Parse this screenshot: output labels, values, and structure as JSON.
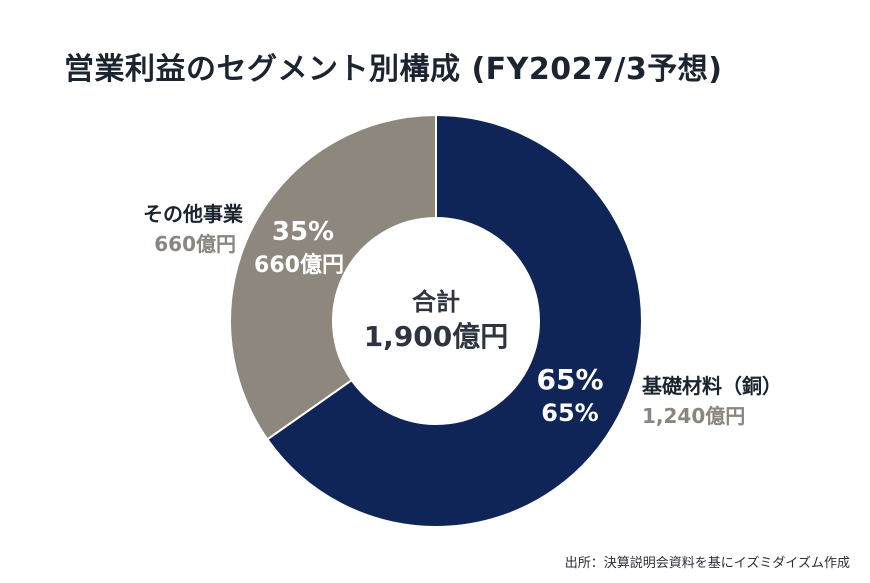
{
  "title": "営業利益のセグメント別構成 (FY2027/3予想)",
  "source": "出所：決算説明会資料を基にイズミダイズム作成",
  "colors": {
    "background": "#ffffff",
    "title": "#1c2430",
    "center_text": "#2f3540",
    "muted_label": "#8a857e"
  },
  "chart_data": {
    "type": "pie",
    "donut": true,
    "center_label": {
      "line1": "合計",
      "line2": "1,900億円"
    },
    "unit": "億円",
    "slices": [
      {
        "name": "基礎材料（銅）",
        "value": 1240,
        "value_label": "1,240億円",
        "percent_label": "65%",
        "inner_second_line": "65%",
        "color": "#0f2557"
      },
      {
        "name": "その他事業",
        "value": 660,
        "value_label": "660億円",
        "percent_label": "35%",
        "inner_second_line": "660億円",
        "color": "#8e877e"
      }
    ]
  }
}
